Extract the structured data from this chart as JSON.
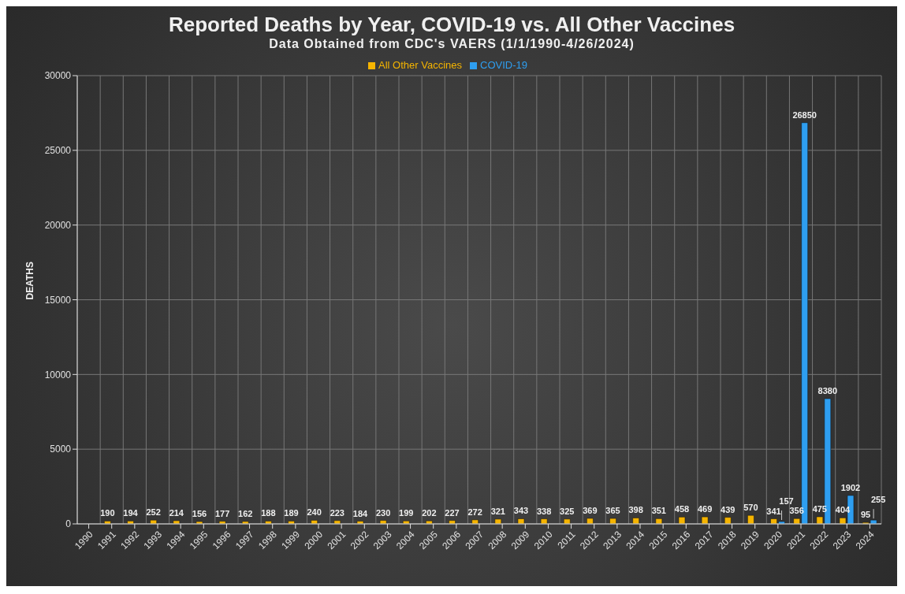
{
  "chart_data": {
    "type": "bar",
    "title": "Reported Deaths by Year, COVID-19 vs. All Other Vaccines",
    "subtitle": "Data Obtained from CDC's VAERS (1/1/1990-4/26/2024)",
    "ylabel": "DEATHS",
    "categories": [
      "1990",
      "1991",
      "1992",
      "1993",
      "1994",
      "1995",
      "1996",
      "1997",
      "1998",
      "1999",
      "2000",
      "2001",
      "2002",
      "2003",
      "2004",
      "2005",
      "2006",
      "2007",
      "2008",
      "2009",
      "2010",
      "2011",
      "2012",
      "2013",
      "2014",
      "2015",
      "2016",
      "2017",
      "2018",
      "2019",
      "2020",
      "2021",
      "2022",
      "2023",
      "2024"
    ],
    "series": [
      {
        "name": "All Other Vaccines",
        "color": "#f5b400",
        "values": [
          null,
          190,
          194,
          252,
          214,
          156,
          177,
          162,
          188,
          189,
          240,
          223,
          184,
          230,
          199,
          202,
          227,
          272,
          321,
          343,
          338,
          325,
          369,
          365,
          398,
          351,
          458,
          469,
          439,
          570,
          341,
          356,
          475,
          404,
          95
        ]
      },
      {
        "name": "COVID-19",
        "color": "#2e9ef0",
        "values": [
          null,
          null,
          null,
          null,
          null,
          null,
          null,
          null,
          null,
          null,
          null,
          null,
          null,
          null,
          null,
          null,
          null,
          null,
          null,
          null,
          null,
          null,
          null,
          null,
          null,
          null,
          null,
          null,
          null,
          null,
          157,
          26850,
          8380,
          1902,
          255
        ]
      }
    ],
    "ylim": [
      0,
      30000
    ],
    "yticks": [
      0,
      5000,
      10000,
      15000,
      20000,
      25000,
      30000
    ],
    "grid": true,
    "legend": "top",
    "data_labels": true
  }
}
